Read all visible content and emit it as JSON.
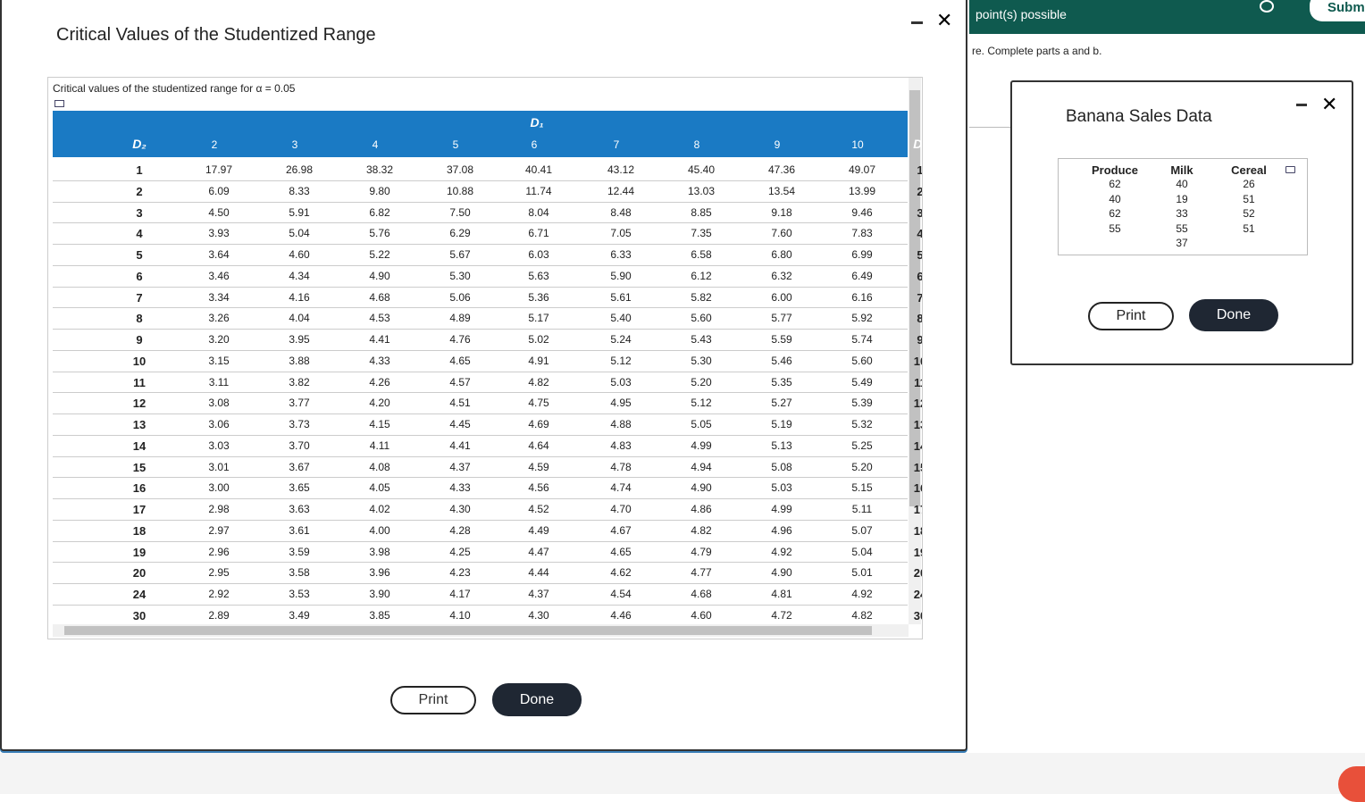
{
  "main_dialog": {
    "title": "Critical Values of the Studentized Range",
    "caption": "Critical values of the studentized range for α = 0.05",
    "table": {
      "d1_label": "D₁",
      "d2_label": "D₂",
      "columns": [
        "2",
        "3",
        "4",
        "5",
        "6",
        "7",
        "8",
        "9",
        "10"
      ],
      "rows": [
        {
          "d2": "1",
          "values": [
            "17.97",
            "26.98",
            "38.32",
            "37.08",
            "40.41",
            "43.12",
            "45.40",
            "47.36",
            "49.07"
          ]
        },
        {
          "d2": "2",
          "values": [
            "6.09",
            "8.33",
            "9.80",
            "10.88",
            "11.74",
            "12.44",
            "13.03",
            "13.54",
            "13.99"
          ]
        },
        {
          "d2": "3",
          "values": [
            "4.50",
            "5.91",
            "6.82",
            "7.50",
            "8.04",
            "8.48",
            "8.85",
            "9.18",
            "9.46"
          ]
        },
        {
          "d2": "4",
          "values": [
            "3.93",
            "5.04",
            "5.76",
            "6.29",
            "6.71",
            "7.05",
            "7.35",
            "7.60",
            "7.83"
          ]
        },
        {
          "d2": "5",
          "values": [
            "3.64",
            "4.60",
            "5.22",
            "5.67",
            "6.03",
            "6.33",
            "6.58",
            "6.80",
            "6.99"
          ]
        },
        {
          "d2": "6",
          "values": [
            "3.46",
            "4.34",
            "4.90",
            "5.30",
            "5.63",
            "5.90",
            "6.12",
            "6.32",
            "6.49"
          ]
        },
        {
          "d2": "7",
          "values": [
            "3.34",
            "4.16",
            "4.68",
            "5.06",
            "5.36",
            "5.61",
            "5.82",
            "6.00",
            "6.16"
          ]
        },
        {
          "d2": "8",
          "values": [
            "3.26",
            "4.04",
            "4.53",
            "4.89",
            "5.17",
            "5.40",
            "5.60",
            "5.77",
            "5.92"
          ]
        },
        {
          "d2": "9",
          "values": [
            "3.20",
            "3.95",
            "4.41",
            "4.76",
            "5.02",
            "5.24",
            "5.43",
            "5.59",
            "5.74"
          ]
        },
        {
          "d2": "10",
          "values": [
            "3.15",
            "3.88",
            "4.33",
            "4.65",
            "4.91",
            "5.12",
            "5.30",
            "5.46",
            "5.60"
          ]
        },
        {
          "d2": "11",
          "values": [
            "3.11",
            "3.82",
            "4.26",
            "4.57",
            "4.82",
            "5.03",
            "5.20",
            "5.35",
            "5.49"
          ]
        },
        {
          "d2": "12",
          "values": [
            "3.08",
            "3.77",
            "4.20",
            "4.51",
            "4.75",
            "4.95",
            "5.12",
            "5.27",
            "5.39"
          ]
        },
        {
          "d2": "13",
          "values": [
            "3.06",
            "3.73",
            "4.15",
            "4.45",
            "4.69",
            "4.88",
            "5.05",
            "5.19",
            "5.32"
          ]
        },
        {
          "d2": "14",
          "values": [
            "3.03",
            "3.70",
            "4.11",
            "4.41",
            "4.64",
            "4.83",
            "4.99",
            "5.13",
            "5.25"
          ]
        },
        {
          "d2": "15",
          "values": [
            "3.01",
            "3.67",
            "4.08",
            "4.37",
            "4.59",
            "4.78",
            "4.94",
            "5.08",
            "5.20"
          ]
        },
        {
          "d2": "16",
          "values": [
            "3.00",
            "3.65",
            "4.05",
            "4.33",
            "4.56",
            "4.74",
            "4.90",
            "5.03",
            "5.15"
          ]
        },
        {
          "d2": "17",
          "values": [
            "2.98",
            "3.63",
            "4.02",
            "4.30",
            "4.52",
            "4.70",
            "4.86",
            "4.99",
            "5.11"
          ]
        },
        {
          "d2": "18",
          "values": [
            "2.97",
            "3.61",
            "4.00",
            "4.28",
            "4.49",
            "4.67",
            "4.82",
            "4.96",
            "5.07"
          ]
        },
        {
          "d2": "19",
          "values": [
            "2.96",
            "3.59",
            "3.98",
            "4.25",
            "4.47",
            "4.65",
            "4.79",
            "4.92",
            "5.04"
          ]
        },
        {
          "d2": "20",
          "values": [
            "2.95",
            "3.58",
            "3.96",
            "4.23",
            "4.44",
            "4.62",
            "4.77",
            "4.90",
            "5.01"
          ]
        },
        {
          "d2": "24",
          "values": [
            "2.92",
            "3.53",
            "3.90",
            "4.17",
            "4.37",
            "4.54",
            "4.68",
            "4.81",
            "4.92"
          ]
        },
        {
          "d2": "30",
          "values": [
            "2.89",
            "3.49",
            "3.85",
            "4.10",
            "4.30",
            "4.46",
            "4.60",
            "4.72",
            "4.82"
          ]
        }
      ]
    },
    "print_button": "Print",
    "done_button": "Done"
  },
  "background": {
    "points": "point(s) possible",
    "submit": "Subm",
    "instruction": "re. Complete parts a and b."
  },
  "banana_dialog": {
    "title": "Banana Sales Data",
    "columns": [
      {
        "header": "Produce",
        "values": [
          "62",
          "40",
          "62",
          "55"
        ]
      },
      {
        "header": "Milk",
        "values": [
          "40",
          "19",
          "33",
          "55",
          "37"
        ]
      },
      {
        "header": "Cereal",
        "values": [
          "26",
          "51",
          "52",
          "51"
        ]
      }
    ],
    "print_button": "Print",
    "done_button": "Done"
  }
}
